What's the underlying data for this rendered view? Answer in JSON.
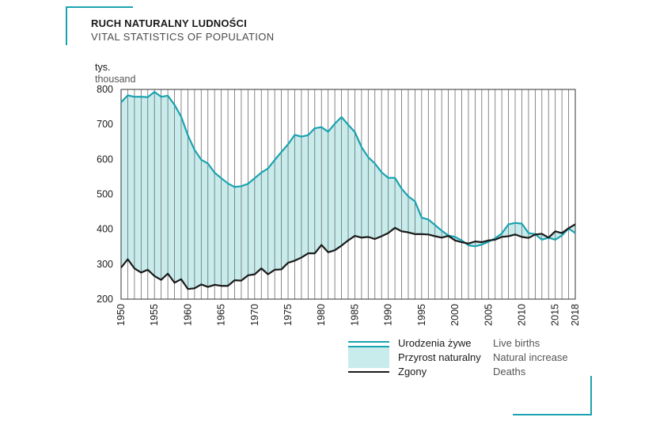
{
  "header": {
    "title": "RUCH NATURALNY LUDNOŚCI",
    "subtitle": "VITAL STATISTICS OF POPULATION"
  },
  "unit": {
    "pl": "tys.",
    "en": "thousand"
  },
  "colors": {
    "births": "#1aa3b0",
    "deaths": "#1a1a1a",
    "fill": "#c8ecec",
    "grid": "#6a6a6a"
  },
  "legend": {
    "births": {
      "pl": "Urodzenia żywe",
      "en": "Live births"
    },
    "increase": {
      "pl": "Przyrost naturalny",
      "en": "Natural increase"
    },
    "deaths": {
      "pl": "Zgony",
      "en": "Deaths"
    }
  },
  "chart_data": {
    "type": "area",
    "title": "RUCH NATURALNY LUDNOŚCI",
    "ylabel": "tys.",
    "ylim": [
      200,
      800
    ],
    "yticks": [
      200,
      300,
      400,
      500,
      600,
      700,
      800
    ],
    "xlim": [
      1950,
      2018
    ],
    "xticks": [
      1950,
      1955,
      1960,
      1965,
      1970,
      1975,
      1980,
      1985,
      1990,
      1995,
      2000,
      2005,
      2010,
      2015,
      2018
    ],
    "grid": "vertical-yearly",
    "x": [
      1950,
      1951,
      1952,
      1953,
      1954,
      1955,
      1956,
      1957,
      1958,
      1959,
      1960,
      1961,
      1962,
      1963,
      1964,
      1965,
      1966,
      1967,
      1968,
      1969,
      1970,
      1971,
      1972,
      1973,
      1974,
      1975,
      1976,
      1977,
      1978,
      1979,
      1980,
      1981,
      1982,
      1983,
      1984,
      1985,
      1986,
      1987,
      1988,
      1989,
      1990,
      1991,
      1992,
      1993,
      1994,
      1995,
      1996,
      1997,
      1998,
      1999,
      2000,
      2001,
      2002,
      2003,
      2004,
      2005,
      2006,
      2007,
      2008,
      2009,
      2010,
      2011,
      2012,
      2013,
      2014,
      2015,
      2016,
      2017,
      2018
    ],
    "series": [
      {
        "name": "Urodzenia żywe",
        "values": [
          763,
          783,
          779,
          779,
          778,
          793,
          779,
          782,
          756,
          722,
          669,
          627,
          599,
          588,
          562,
          546,
          531,
          521,
          523,
          530,
          546,
          562,
          574,
          598,
          621,
          643,
          670,
          665,
          669,
          689,
          692,
          679,
          702,
          721,
          699,
          678,
          635,
          606,
          588,
          563,
          547,
          547,
          516,
          494,
          480,
          433,
          428,
          412,
          396,
          382,
          378,
          368,
          354,
          351,
          356,
          364,
          374,
          388,
          414,
          418,
          416,
          389,
          386,
          370,
          376,
          370,
          382,
          402,
          389
        ]
      },
      {
        "name": "Zgony",
        "values": [
          290,
          314,
          288,
          276,
          284,
          266,
          255,
          273,
          247,
          257,
          229,
          231,
          242,
          235,
          241,
          238,
          238,
          254,
          253,
          268,
          271,
          288,
          271,
          284,
          285,
          304,
          310,
          319,
          331,
          331,
          355,
          334,
          340,
          353,
          368,
          381,
          376,
          378,
          372,
          380,
          389,
          404,
          394,
          391,
          386,
          386,
          385,
          380,
          376,
          381,
          368,
          363,
          359,
          365,
          363,
          368,
          370,
          378,
          380,
          385,
          378,
          375,
          385,
          387,
          376,
          394,
          389,
          403,
          414
        ]
      }
    ]
  }
}
